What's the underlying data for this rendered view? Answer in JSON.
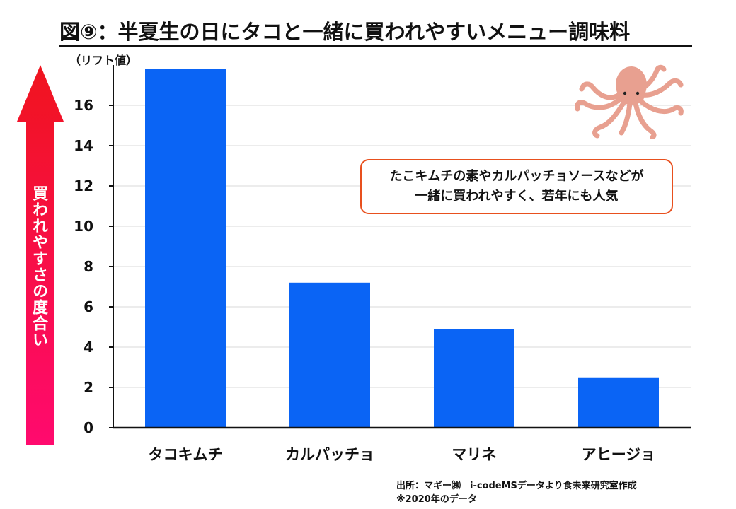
{
  "title": "図⑨：半夏生の日にタコと一緒に買われやすいメニュー調味料",
  "unit_label": "（リフト値）",
  "arrow_label": "買われやすさの度合い",
  "callout": {
    "line1": "たこキムチの素やカルパッチョソースなどが",
    "line2": "一緒に買われやすく、若年にも人気"
  },
  "source": {
    "line1": "出所：マギー㈱　i-codeMSデータより食未来研究室作成",
    "line2": "※2020年のデータ"
  },
  "colors": {
    "bar": "#0a64f5",
    "arrow_top": "#f0141e",
    "arrow_bottom": "#ff0a6e",
    "callout_border": "#e8501e",
    "octopus": "#e8a090"
  },
  "icons": {
    "decoration": "octopus-icon"
  },
  "chart_data": {
    "type": "bar",
    "categories": [
      "タコキムチ",
      "カルパッチョ",
      "マリネ",
      "アヒージョ"
    ],
    "values": [
      17.8,
      7.2,
      4.9,
      2.5
    ],
    "ylim": [
      0,
      18
    ],
    "yticks": [
      0,
      2,
      4,
      6,
      8,
      10,
      12,
      14,
      16
    ],
    "title": "",
    "xlabel": "",
    "ylabel": "（リフト値）",
    "grid": true,
    "legend": "none"
  }
}
